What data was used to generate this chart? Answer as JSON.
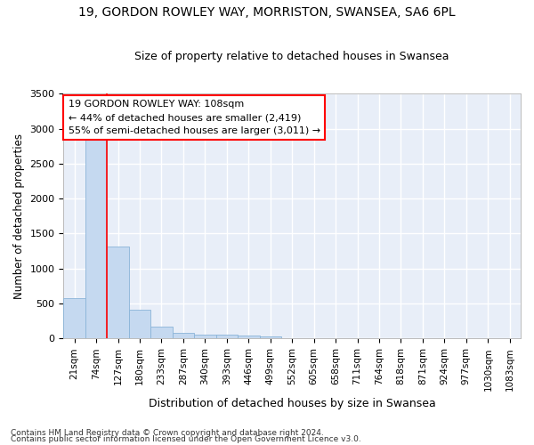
{
  "title": "19, GORDON ROWLEY WAY, MORRISTON, SWANSEA, SA6 6PL",
  "subtitle": "Size of property relative to detached houses in Swansea",
  "xlabel": "Distribution of detached houses by size in Swansea",
  "ylabel": "Number of detached properties",
  "bar_color": "#c5d9f0",
  "bar_edge_color": "#8ab4d8",
  "background_color": "#e8eef8",
  "grid_color": "#ffffff",
  "categories": [
    "21sqm",
    "74sqm",
    "127sqm",
    "180sqm",
    "233sqm",
    "287sqm",
    "340sqm",
    "393sqm",
    "446sqm",
    "499sqm",
    "552sqm",
    "605sqm",
    "658sqm",
    "711sqm",
    "764sqm",
    "818sqm",
    "871sqm",
    "924sqm",
    "977sqm",
    "1030sqm",
    "1083sqm"
  ],
  "values": [
    575,
    2920,
    1310,
    415,
    165,
    80,
    60,
    55,
    45,
    35,
    0,
    0,
    0,
    0,
    0,
    0,
    0,
    0,
    0,
    0,
    0
  ],
  "annotation_text": "19 GORDON ROWLEY WAY: 108sqm\n← 44% of detached houses are smaller (2,419)\n55% of semi-detached houses are larger (3,011) →",
  "vline_x": 1.5,
  "ylim_max": 3500,
  "yticks": [
    0,
    500,
    1000,
    1500,
    2000,
    2500,
    3000,
    3500
  ],
  "footer_line1": "Contains HM Land Registry data © Crown copyright and database right 2024.",
  "footer_line2": "Contains public sector information licensed under the Open Government Licence v3.0."
}
